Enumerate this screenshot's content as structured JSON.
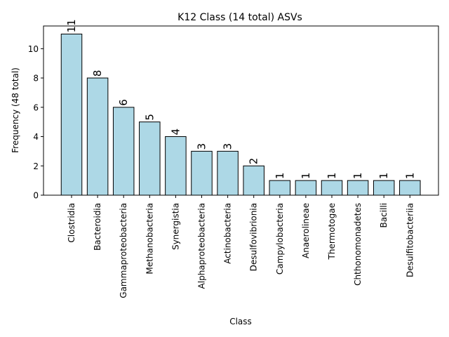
{
  "chart_data": {
    "type": "bar",
    "title": "K12 Class (14 total) ASVs",
    "xlabel": "Class",
    "ylabel": "Frequency (48 total)",
    "categories": [
      "Clostridia",
      "Bacteroidia",
      "Gammaproteobacteria",
      "Methanobacteria",
      "Synergistia",
      "Alphaproteobacteria",
      "Actinobacteria",
      "Desulfovibrionia",
      "Campylobacteria",
      "Anaerolineae",
      "Thermotogae",
      "Chthonomonadetes",
      "Bacilli",
      "Desulfitobacteriia"
    ],
    "values": [
      11,
      8,
      6,
      5,
      4,
      3,
      3,
      2,
      1,
      1,
      1,
      1,
      1,
      1
    ],
    "ylim": [
      0,
      11.55
    ],
    "yticks": [
      0,
      2,
      4,
      6,
      8,
      10
    ],
    "grid": false,
    "bar_color": "#add8e6",
    "edge_color": "#000000",
    "data_labels": true
  }
}
